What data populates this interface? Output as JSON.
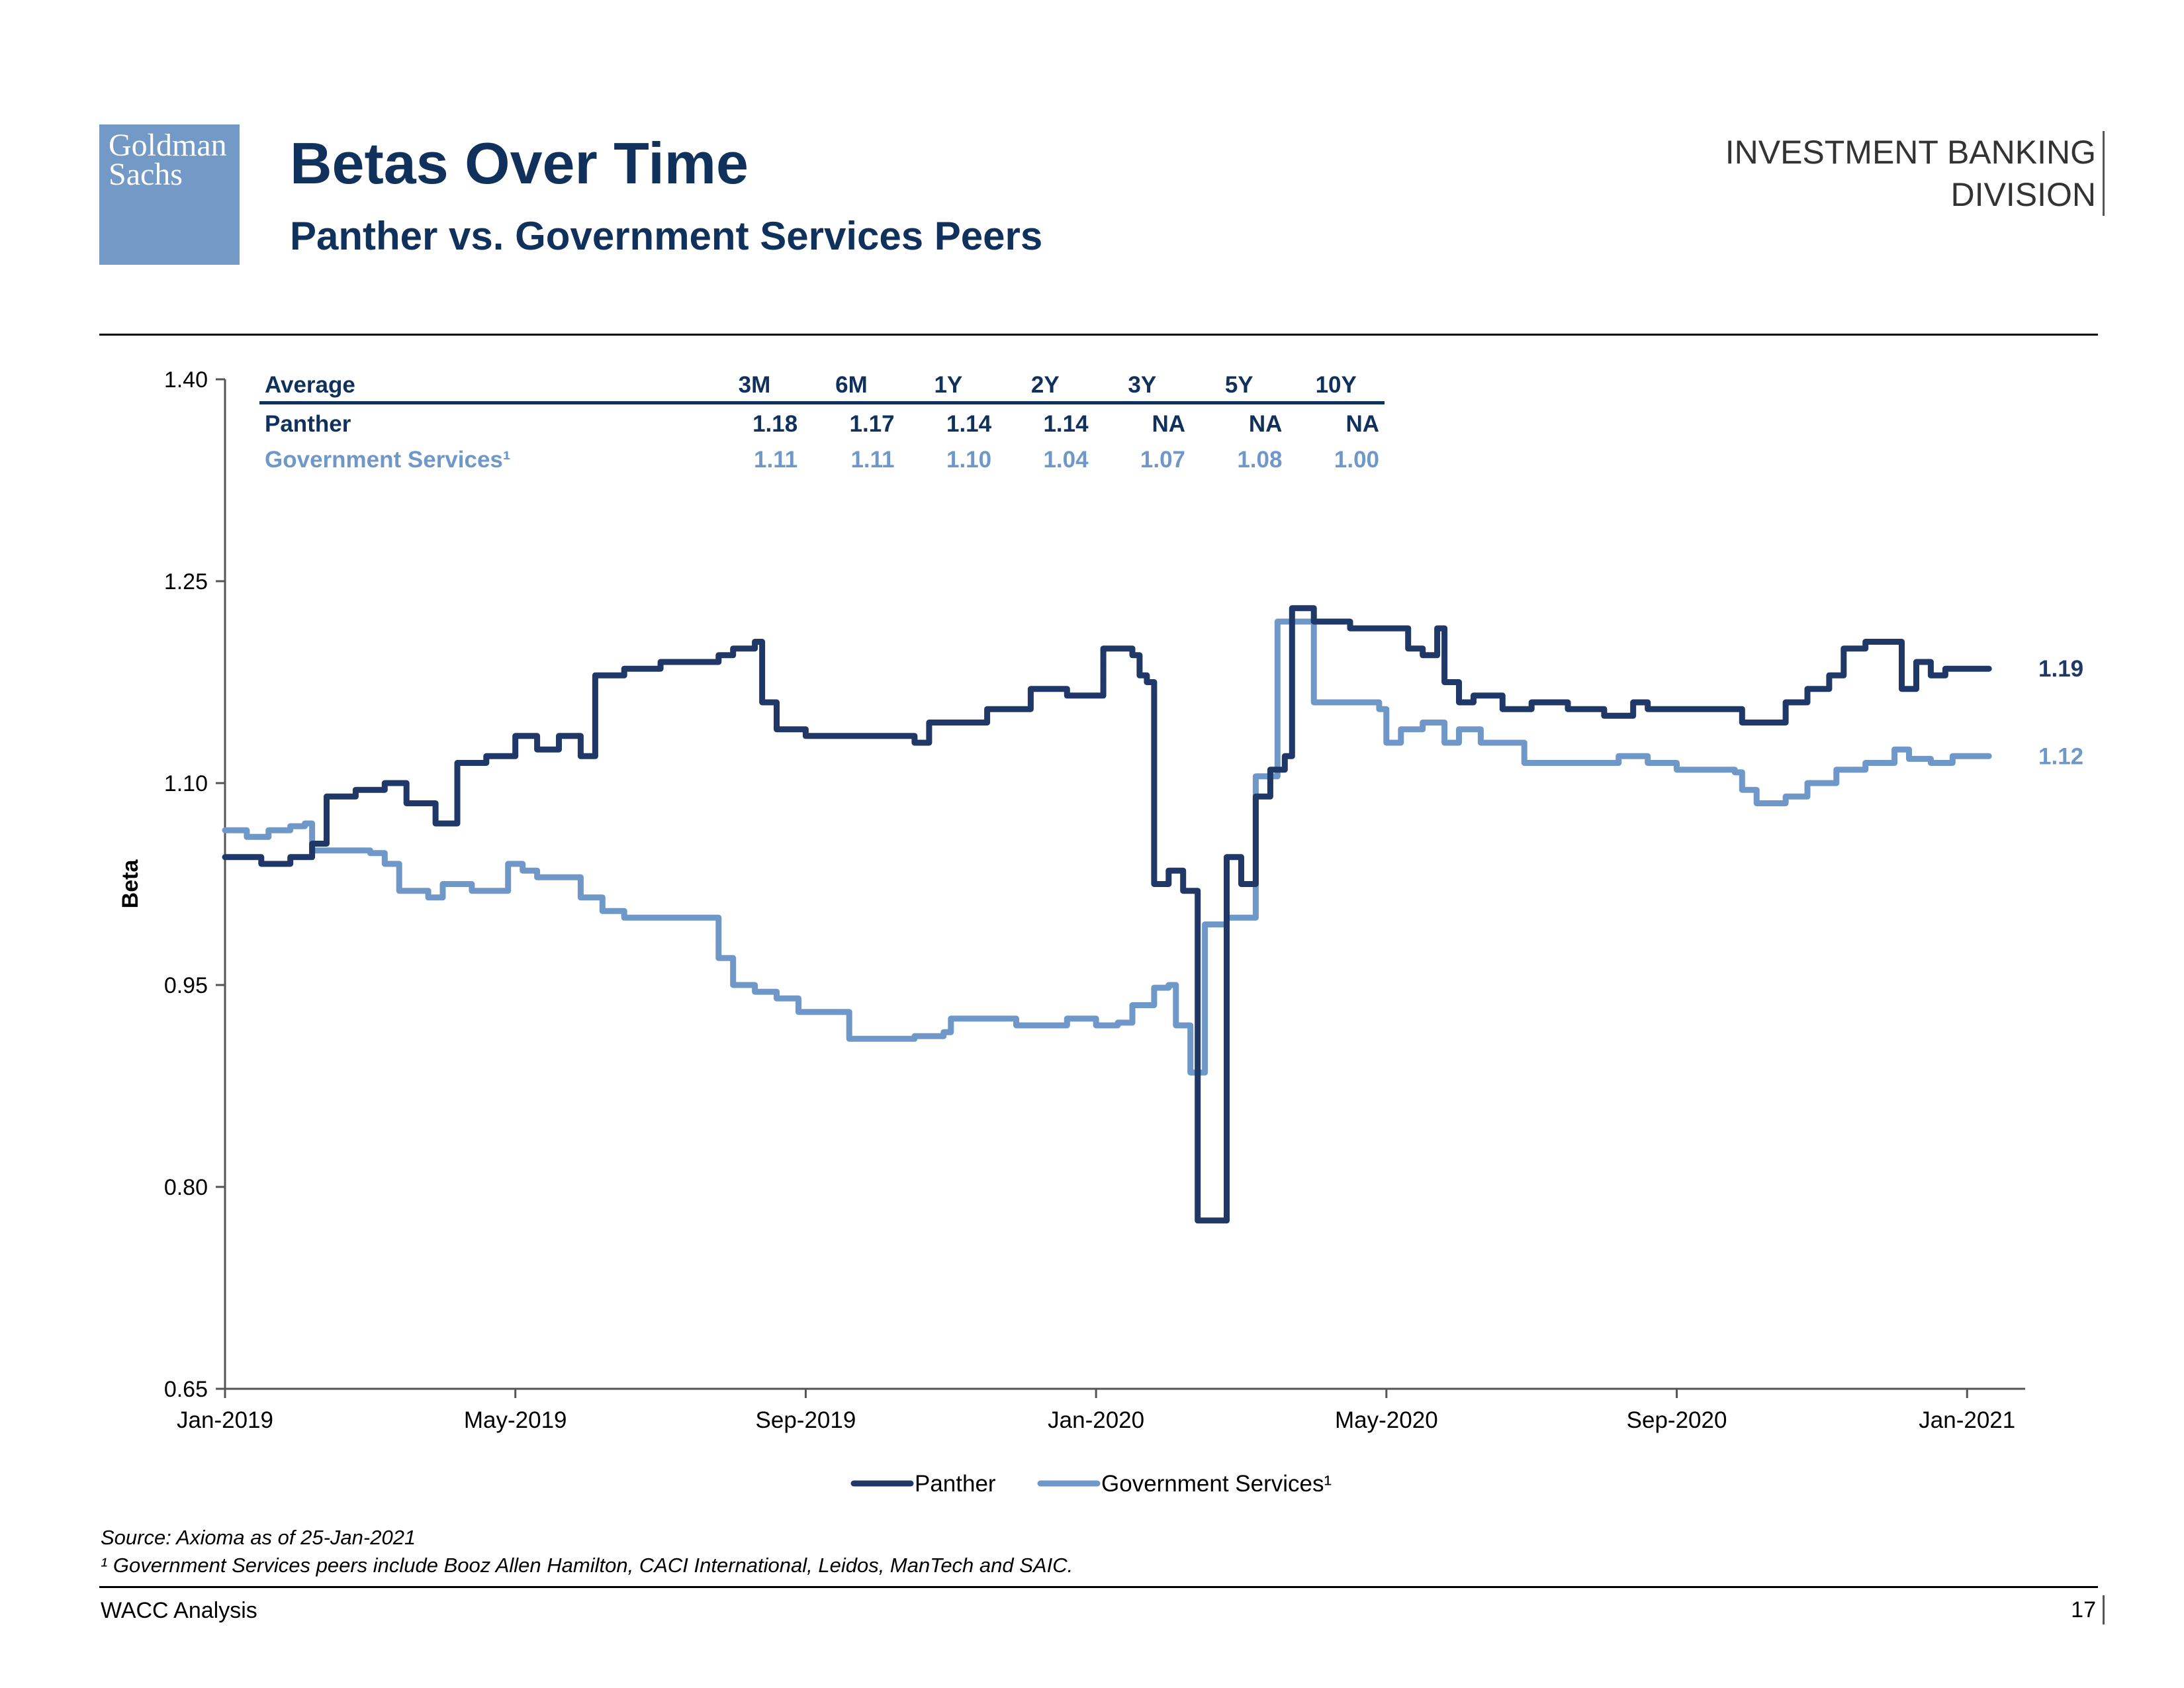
{
  "header": {
    "logo": [
      "Goldman",
      "Sachs"
    ],
    "title": "Betas Over Time",
    "subtitle": "Panther vs. Government Services Peers",
    "division": [
      "INVESTMENT BANKING",
      "DIVISION"
    ]
  },
  "table": {
    "columns": [
      "Average",
      "3M",
      "6M",
      "1Y",
      "2Y",
      "3Y",
      "5Y",
      "10Y"
    ],
    "rows": [
      {
        "name": "Panther",
        "values": [
          "1.18",
          "1.17",
          "1.14",
          "1.14",
          "NA",
          "NA",
          "NA"
        ]
      },
      {
        "name": "Government Services¹",
        "values": [
          "1.11",
          "1.11",
          "1.10",
          "1.04",
          "1.07",
          "1.08",
          "1.00"
        ]
      }
    ]
  },
  "colors": {
    "panther": "#1f3868",
    "gov": "#6f98c9"
  },
  "chart_data": {
    "type": "line",
    "title": "Betas Over Time",
    "xlabel": "",
    "ylabel": "Beta",
    "ylim": [
      0.65,
      1.4
    ],
    "yticks": [
      "0.65",
      "0.80",
      "0.95",
      "1.10",
      "1.25",
      "1.40"
    ],
    "x_range_months": [
      0,
      24.8
    ],
    "xticks": [
      {
        "label": "Jan-2019",
        "m": 0
      },
      {
        "label": "May-2019",
        "m": 4
      },
      {
        "label": "Sep-2019",
        "m": 8
      },
      {
        "label": "Jan-2020",
        "m": 12
      },
      {
        "label": "May-2020",
        "m": 16
      },
      {
        "label": "Sep-2020",
        "m": 20
      },
      {
        "label": "Jan-2021",
        "m": 24
      }
    ],
    "x_unit": "months since Jan-2019",
    "series": [
      {
        "name": "Panther",
        "end_label": "1.19",
        "points": [
          [
            0.0,
            1.045
          ],
          [
            0.5,
            1.04
          ],
          [
            0.9,
            1.045
          ],
          [
            1.2,
            1.055
          ],
          [
            1.4,
            1.09
          ],
          [
            1.8,
            1.095
          ],
          [
            2.2,
            1.1
          ],
          [
            2.5,
            1.085
          ],
          [
            2.9,
            1.07
          ],
          [
            3.2,
            1.115
          ],
          [
            3.6,
            1.12
          ],
          [
            4.0,
            1.135
          ],
          [
            4.3,
            1.125
          ],
          [
            4.6,
            1.135
          ],
          [
            4.9,
            1.12
          ],
          [
            5.0,
            1.12
          ],
          [
            5.1,
            1.18
          ],
          [
            5.5,
            1.185
          ],
          [
            6.0,
            1.19
          ],
          [
            6.5,
            1.19
          ],
          [
            6.8,
            1.195
          ],
          [
            7.0,
            1.2
          ],
          [
            7.3,
            1.205
          ],
          [
            7.4,
            1.16
          ],
          [
            7.6,
            1.14
          ],
          [
            8.0,
            1.135
          ],
          [
            8.5,
            1.135
          ],
          [
            9.0,
            1.135
          ],
          [
            9.5,
            1.13
          ],
          [
            9.7,
            1.145
          ],
          [
            10.2,
            1.145
          ],
          [
            10.5,
            1.155
          ],
          [
            10.9,
            1.155
          ],
          [
            11.1,
            1.17
          ],
          [
            11.6,
            1.165
          ],
          [
            11.9,
            1.165
          ],
          [
            12.1,
            1.2
          ],
          [
            12.5,
            1.195
          ],
          [
            12.6,
            1.18
          ],
          [
            12.7,
            1.175
          ],
          [
            12.8,
            1.025
          ],
          [
            13.0,
            1.035
          ],
          [
            13.2,
            1.02
          ],
          [
            13.3,
            1.02
          ],
          [
            13.4,
            0.775
          ],
          [
            13.7,
            0.775
          ],
          [
            13.8,
            1.045
          ],
          [
            14.0,
            1.025
          ],
          [
            14.2,
            1.09
          ],
          [
            14.4,
            1.11
          ],
          [
            14.6,
            1.12
          ],
          [
            14.7,
            1.23
          ],
          [
            15.0,
            1.22
          ],
          [
            15.5,
            1.215
          ],
          [
            16.0,
            1.215
          ],
          [
            16.3,
            1.2
          ],
          [
            16.5,
            1.195
          ],
          [
            16.7,
            1.215
          ],
          [
            16.8,
            1.175
          ],
          [
            17.0,
            1.16
          ],
          [
            17.2,
            1.165
          ],
          [
            17.4,
            1.165
          ],
          [
            17.6,
            1.155
          ],
          [
            18.0,
            1.16
          ],
          [
            18.5,
            1.155
          ],
          [
            19.0,
            1.15
          ],
          [
            19.4,
            1.16
          ],
          [
            19.6,
            1.155
          ],
          [
            20.0,
            1.155
          ],
          [
            20.5,
            1.155
          ],
          [
            20.9,
            1.145
          ],
          [
            21.3,
            1.145
          ],
          [
            21.5,
            1.16
          ],
          [
            21.8,
            1.17
          ],
          [
            22.1,
            1.18
          ],
          [
            22.3,
            1.2
          ],
          [
            22.6,
            1.205
          ],
          [
            23.0,
            1.205
          ],
          [
            23.1,
            1.17
          ],
          [
            23.3,
            1.19
          ],
          [
            23.5,
            1.18
          ],
          [
            23.7,
            1.185
          ],
          [
            24.0,
            1.185
          ],
          [
            24.3,
            1.185
          ]
        ]
      },
      {
        "name": "Government Services¹",
        "end_label": "1.12",
        "points": [
          [
            0.0,
            1.065
          ],
          [
            0.3,
            1.06
          ],
          [
            0.6,
            1.065
          ],
          [
            0.9,
            1.068
          ],
          [
            1.1,
            1.07
          ],
          [
            1.2,
            1.05
          ],
          [
            1.6,
            1.05
          ],
          [
            2.0,
            1.048
          ],
          [
            2.2,
            1.04
          ],
          [
            2.4,
            1.02
          ],
          [
            2.8,
            1.015
          ],
          [
            3.0,
            1.025
          ],
          [
            3.4,
            1.02
          ],
          [
            3.7,
            1.02
          ],
          [
            3.9,
            1.04
          ],
          [
            4.1,
            1.035
          ],
          [
            4.3,
            1.03
          ],
          [
            4.6,
            1.03
          ],
          [
            4.9,
            1.015
          ],
          [
            5.2,
            1.005
          ],
          [
            5.5,
            1.0
          ],
          [
            5.8,
            1.0
          ],
          [
            6.1,
            1.0
          ],
          [
            6.5,
            1.0
          ],
          [
            6.7,
            1.0
          ],
          [
            6.8,
            0.97
          ],
          [
            7.0,
            0.95
          ],
          [
            7.3,
            0.945
          ],
          [
            7.6,
            0.94
          ],
          [
            7.9,
            0.93
          ],
          [
            8.1,
            0.93
          ],
          [
            8.5,
            0.93
          ],
          [
            8.6,
            0.91
          ],
          [
            9.0,
            0.91
          ],
          [
            9.5,
            0.912
          ],
          [
            9.9,
            0.915
          ],
          [
            10.0,
            0.925
          ],
          [
            10.4,
            0.925
          ],
          [
            10.7,
            0.925
          ],
          [
            10.9,
            0.92
          ],
          [
            11.3,
            0.92
          ],
          [
            11.6,
            0.925
          ],
          [
            12.0,
            0.92
          ],
          [
            12.3,
            0.922
          ],
          [
            12.5,
            0.935
          ],
          [
            12.8,
            0.948
          ],
          [
            13.0,
            0.95
          ],
          [
            13.1,
            0.92
          ],
          [
            13.3,
            0.885
          ],
          [
            13.5,
            0.995
          ],
          [
            13.8,
            1.0
          ],
          [
            14.1,
            1.0
          ],
          [
            14.2,
            1.105
          ],
          [
            14.4,
            1.105
          ],
          [
            14.5,
            1.22
          ],
          [
            14.8,
            1.22
          ],
          [
            15.0,
            1.16
          ],
          [
            15.4,
            1.16
          ],
          [
            15.9,
            1.155
          ],
          [
            16.0,
            1.13
          ],
          [
            16.2,
            1.14
          ],
          [
            16.5,
            1.145
          ],
          [
            16.7,
            1.145
          ],
          [
            16.8,
            1.13
          ],
          [
            17.0,
            1.14
          ],
          [
            17.3,
            1.13
          ],
          [
            17.6,
            1.13
          ],
          [
            17.9,
            1.115
          ],
          [
            18.4,
            1.115
          ],
          [
            18.8,
            1.115
          ],
          [
            19.2,
            1.12
          ],
          [
            19.6,
            1.115
          ],
          [
            20.0,
            1.11
          ],
          [
            20.5,
            1.11
          ],
          [
            20.8,
            1.108
          ],
          [
            20.9,
            1.095
          ],
          [
            21.1,
            1.085
          ],
          [
            21.5,
            1.09
          ],
          [
            21.8,
            1.1
          ],
          [
            22.2,
            1.11
          ],
          [
            22.6,
            1.115
          ],
          [
            23.0,
            1.125
          ],
          [
            23.2,
            1.118
          ],
          [
            23.5,
            1.115
          ],
          [
            23.8,
            1.12
          ],
          [
            24.1,
            1.12
          ],
          [
            24.3,
            1.12
          ]
        ]
      }
    ],
    "legend": "bottom-center"
  },
  "footnotes": [
    "Source: Axioma as of 25-Jan-2021",
    "¹ Government Services peers include Booz Allen Hamilton, CACI International, Leidos, ManTech and SAIC."
  ],
  "footer": {
    "left": "WACC Analysis",
    "page": "17"
  }
}
